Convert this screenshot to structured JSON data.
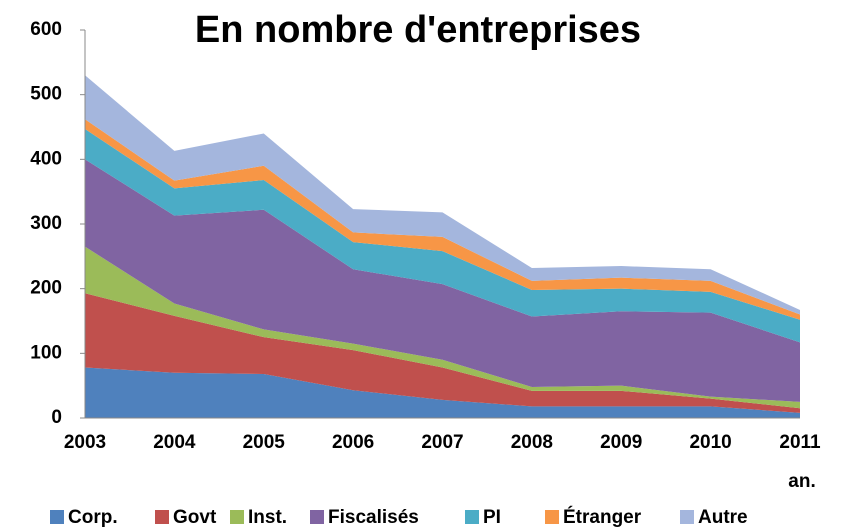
{
  "chart_data": {
    "type": "stacked-area",
    "title": "En nombre d'entreprises",
    "x_label": "an.",
    "categories": [
      "2003",
      "2004",
      "2005",
      "2006",
      "2007",
      "2008",
      "2009",
      "2010",
      "2011"
    ],
    "series": [
      {
        "name": "Corp.",
        "color": "#4f81bd",
        "values": [
          78,
          70,
          68,
          43,
          28,
          18,
          18,
          18,
          8
        ]
      },
      {
        "name": "Govt",
        "color": "#c0504d",
        "values": [
          115,
          88,
          57,
          62,
          50,
          24,
          24,
          12,
          7
        ]
      },
      {
        "name": "Inst.",
        "color": "#9bbb59",
        "values": [
          72,
          19,
          12,
          10,
          12,
          6,
          8,
          3,
          10
        ]
      },
      {
        "name": "Fiscalisés",
        "color": "#8064a2",
        "values": [
          135,
          136,
          185,
          115,
          117,
          109,
          115,
          130,
          92
        ]
      },
      {
        "name": "PI",
        "color": "#4bacc6",
        "values": [
          47,
          42,
          46,
          42,
          51,
          41,
          35,
          32,
          35
        ]
      },
      {
        "name": "Étranger",
        "color": "#f79646",
        "values": [
          15,
          12,
          22,
          15,
          22,
          14,
          17,
          17,
          8
        ]
      },
      {
        "name": "Autre",
        "color": "#a4b6dd",
        "values": [
          68,
          46,
          50,
          36,
          38,
          20,
          18,
          18,
          7
        ]
      }
    ],
    "ylim": [
      0,
      600
    ],
    "yticks": [
      0,
      100,
      200,
      300,
      400,
      500,
      600
    ],
    "grid": false,
    "legend": "bottom"
  }
}
